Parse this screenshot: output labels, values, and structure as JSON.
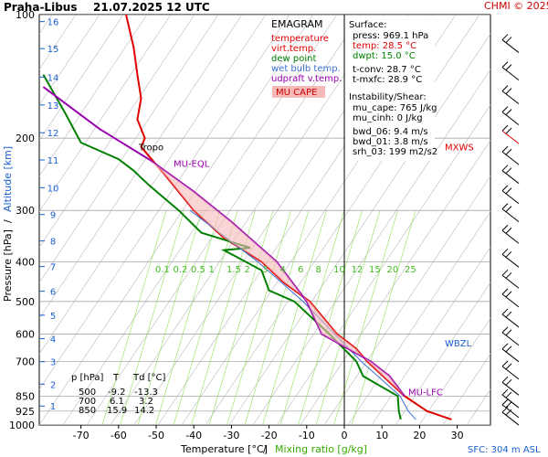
{
  "header": {
    "station": "Praha-Libus",
    "datetime": "21.07.2025 12 UTC",
    "copyright": "CHMI © 2025"
  },
  "axes": {
    "x_label_temp": "Temperature [°C]",
    "x_label_sep": "/",
    "x_label_mix": "Mixing ratio [g/kg]",
    "y_label_press": "Pressure [hPa]",
    "y_label_sep": "/",
    "y_label_alt": "Altitude [km]",
    "sfc_note": "SFC: 304 m ASL"
  },
  "legend": {
    "title": "EMAGRAM",
    "items": [
      {
        "label": "temperature",
        "color": "#e00000"
      },
      {
        "label": "virt.temp.",
        "color": "#e00000"
      },
      {
        "label": "dew point",
        "color": "#008000"
      },
      {
        "label": "wet bulb temp.",
        "color": "#3a6fd6"
      },
      {
        "label": "udpraft v.temp.",
        "color": "#9a00b0"
      }
    ],
    "cape_label": "MU CAPE"
  },
  "surface_box": {
    "title": "Surface:",
    "press": "press: 969.1 hPa",
    "temp": "temp: 28.5 °C",
    "dwpt": "dwpt: 15.0 °C",
    "tconv": "t-conv: 28.7 °C",
    "tmxfc": "t-mxfc: 28.9 °C",
    "instab_title": "Instability/Shear:",
    "mu_cape": "mu_cape: 765 J/kg",
    "mu_cinh": "mu_cinh: 0 J/kg",
    "bwd_06": "bwd_06: 9.4 m/s",
    "bwd_01": "bwd_01: 3.8 m/s",
    "srh_03": "srh_03: 199 m2/s2"
  },
  "table": {
    "headers": [
      "p [hPa]",
      "T",
      "Td [°C]"
    ],
    "rows": [
      [
        "500",
        "-9.2",
        "-13.3"
      ],
      [
        "700",
        "6.1",
        "3.2"
      ],
      [
        "850",
        "15.9",
        "14.2"
      ]
    ]
  },
  "chart_data": {
    "type": "line",
    "title": "Praha-Libus 21.07.2025 12 UTC",
    "xlabel": "Temperature [°C] / Mixing ratio [g/kg]",
    "ylabel": "Pressure [hPa] / Altitude [km]",
    "y_scale": "log",
    "y_reversed": true,
    "xlim": [
      -80,
      35
    ],
    "ylim": [
      1000,
      100
    ],
    "x_ticks": [
      -70,
      -60,
      -50,
      -40,
      -30,
      -20,
      -10,
      0,
      10,
      20,
      30
    ],
    "y_ticks": [
      100,
      200,
      300,
      400,
      500,
      600,
      700,
      850,
      925,
      1000
    ],
    "altitude_ticks_km": [
      1,
      2,
      3,
      4,
      5,
      6,
      7,
      8,
      9,
      10,
      11,
      12,
      13,
      14,
      15,
      16
    ],
    "mixing_ratio_labels": [
      "0.1",
      "0.2",
      "0.5",
      "1",
      "1.5",
      "2",
      "3",
      "4",
      "6",
      "8",
      "10",
      "12",
      "15",
      "20",
      "25"
    ],
    "series": [
      {
        "name": "temperature",
        "color": "#e00000",
        "points": [
          [
            28.5,
            969
          ],
          [
            22,
            925
          ],
          [
            16,
            850
          ],
          [
            6.1,
            700
          ],
          [
            3,
            650
          ],
          [
            -2,
            600
          ],
          [
            -9.2,
            500
          ],
          [
            -16,
            450
          ],
          [
            -22,
            400
          ],
          [
            -32,
            350
          ],
          [
            -40,
            300
          ],
          [
            -47,
            250
          ],
          [
            -54,
            210
          ],
          [
            -53,
            200
          ],
          [
            -55,
            180
          ],
          [
            -54,
            160
          ],
          [
            -55,
            140
          ],
          [
            -56,
            120
          ],
          [
            -58,
            100
          ]
        ]
      },
      {
        "name": "dew point",
        "color": "#008000",
        "points": [
          [
            15,
            969
          ],
          [
            14.5,
            925
          ],
          [
            14.2,
            850
          ],
          [
            5,
            760
          ],
          [
            3.2,
            700
          ],
          [
            -4,
            600
          ],
          [
            -13.3,
            500
          ],
          [
            -20,
            470
          ],
          [
            -22,
            420
          ],
          [
            -32,
            375
          ],
          [
            -25,
            370
          ],
          [
            -38,
            340
          ],
          [
            -44,
            300
          ],
          [
            -52,
            260
          ],
          [
            -56,
            240
          ],
          [
            -60,
            225
          ],
          [
            -70,
            205
          ],
          [
            -74,
            175
          ],
          [
            -80,
            140
          ]
        ]
      },
      {
        "name": "wet bulb temp.",
        "color": "#3a6fd6",
        "points": [
          [
            19,
            969
          ],
          [
            17,
            925
          ],
          [
            14.8,
            850
          ],
          [
            4.5,
            700
          ],
          [
            -11,
            500
          ],
          [
            -23,
            400
          ],
          [
            -41,
            300
          ]
        ]
      },
      {
        "name": "udpraft v.temp.",
        "color": "#9a00b0",
        "points": [
          [
            16,
            850
          ],
          [
            12,
            760
          ],
          [
            7,
            700
          ],
          [
            -6,
            600
          ],
          [
            -10,
            500
          ],
          [
            -18,
            400
          ],
          [
            -30,
            320
          ],
          [
            -40,
            270
          ],
          [
            -52,
            225
          ],
          [
            -65,
            190
          ],
          [
            -80,
            150
          ]
        ]
      }
    ],
    "annotations": [
      {
        "label": "Tropo",
        "pressure": 210
      },
      {
        "label": "MU-EQL",
        "pressure": 230
      },
      {
        "label": "MU-LFC",
        "pressure": 830
      },
      {
        "label": "WBZL",
        "pressure": 630
      },
      {
        "label": "MXWS",
        "pressure": 210
      }
    ]
  }
}
